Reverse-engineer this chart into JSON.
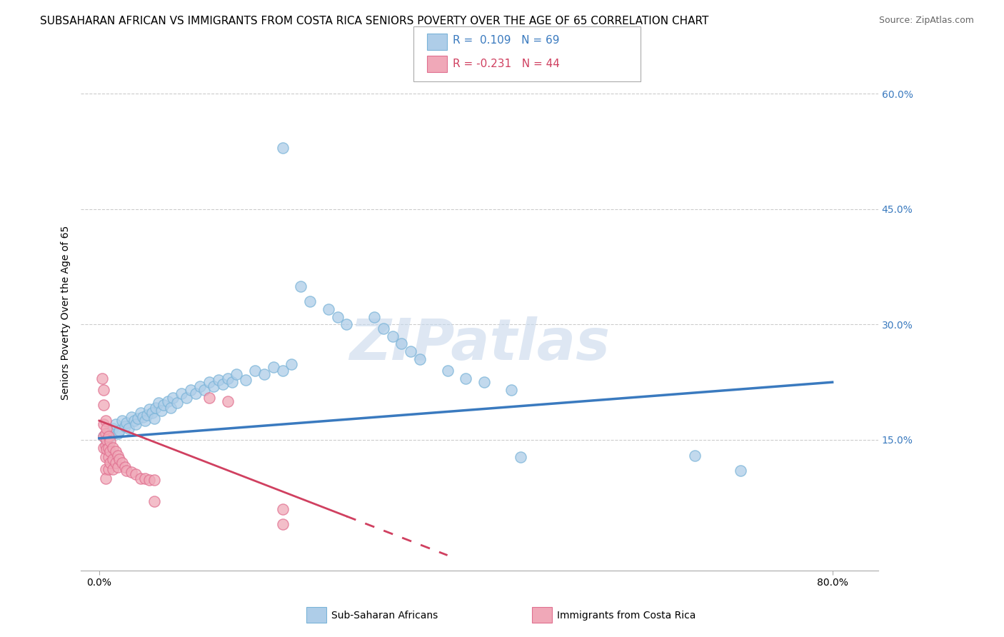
{
  "title": "SUBSAHARAN AFRICAN VS IMMIGRANTS FROM COSTA RICA SENIORS POVERTY OVER THE AGE OF 65 CORRELATION CHART",
  "source": "Source: ZipAtlas.com",
  "ylabel": "Seniors Poverty Over the Age of 65",
  "legend1_label": "Sub-Saharan Africans",
  "legend2_label": "Immigrants from Costa Rica",
  "r1": 0.109,
  "n1": 69,
  "r2": -0.231,
  "n2": 44,
  "blue_color": "#7ab4d8",
  "blue_fill": "#aecde8",
  "pink_color": "#e07090",
  "pink_fill": "#f0a8b8",
  "trend_blue": "#3a7abf",
  "trend_pink": "#d04060",
  "watermark_color": "#c8d8ec",
  "blue_dots": [
    [
      0.005,
      0.155
    ],
    [
      0.008,
      0.148
    ],
    [
      0.01,
      0.16
    ],
    [
      0.012,
      0.155
    ],
    [
      0.015,
      0.165
    ],
    [
      0.018,
      0.17
    ],
    [
      0.02,
      0.158
    ],
    [
      0.022,
      0.162
    ],
    [
      0.025,
      0.175
    ],
    [
      0.028,
      0.168
    ],
    [
      0.03,
      0.172
    ],
    [
      0.032,
      0.165
    ],
    [
      0.035,
      0.18
    ],
    [
      0.038,
      0.175
    ],
    [
      0.04,
      0.17
    ],
    [
      0.042,
      0.178
    ],
    [
      0.045,
      0.185
    ],
    [
      0.048,
      0.18
    ],
    [
      0.05,
      0.175
    ],
    [
      0.052,
      0.182
    ],
    [
      0.055,
      0.19
    ],
    [
      0.058,
      0.185
    ],
    [
      0.06,
      0.178
    ],
    [
      0.062,
      0.192
    ],
    [
      0.065,
      0.198
    ],
    [
      0.068,
      0.188
    ],
    [
      0.07,
      0.195
    ],
    [
      0.075,
      0.2
    ],
    [
      0.078,
      0.192
    ],
    [
      0.08,
      0.205
    ],
    [
      0.085,
      0.198
    ],
    [
      0.09,
      0.21
    ],
    [
      0.095,
      0.205
    ],
    [
      0.1,
      0.215
    ],
    [
      0.105,
      0.21
    ],
    [
      0.11,
      0.22
    ],
    [
      0.115,
      0.215
    ],
    [
      0.12,
      0.225
    ],
    [
      0.125,
      0.22
    ],
    [
      0.13,
      0.228
    ],
    [
      0.135,
      0.222
    ],
    [
      0.14,
      0.23
    ],
    [
      0.145,
      0.225
    ],
    [
      0.15,
      0.235
    ],
    [
      0.16,
      0.228
    ],
    [
      0.17,
      0.24
    ],
    [
      0.18,
      0.235
    ],
    [
      0.19,
      0.245
    ],
    [
      0.2,
      0.24
    ],
    [
      0.21,
      0.248
    ],
    [
      0.22,
      0.35
    ],
    [
      0.23,
      0.33
    ],
    [
      0.25,
      0.32
    ],
    [
      0.26,
      0.31
    ],
    [
      0.27,
      0.3
    ],
    [
      0.3,
      0.31
    ],
    [
      0.31,
      0.295
    ],
    [
      0.32,
      0.285
    ],
    [
      0.33,
      0.275
    ],
    [
      0.34,
      0.265
    ],
    [
      0.35,
      0.255
    ],
    [
      0.38,
      0.24
    ],
    [
      0.4,
      0.23
    ],
    [
      0.42,
      0.225
    ],
    [
      0.45,
      0.215
    ],
    [
      0.46,
      0.128
    ],
    [
      0.2,
      0.53
    ],
    [
      0.65,
      0.13
    ],
    [
      0.7,
      0.11
    ]
  ],
  "pink_dots": [
    [
      0.003,
      0.23
    ],
    [
      0.005,
      0.215
    ],
    [
      0.005,
      0.195
    ],
    [
      0.005,
      0.17
    ],
    [
      0.005,
      0.155
    ],
    [
      0.005,
      0.14
    ],
    [
      0.007,
      0.175
    ],
    [
      0.007,
      0.158
    ],
    [
      0.007,
      0.143
    ],
    [
      0.007,
      0.128
    ],
    [
      0.007,
      0.112
    ],
    [
      0.007,
      0.1
    ],
    [
      0.008,
      0.165
    ],
    [
      0.008,
      0.15
    ],
    [
      0.008,
      0.138
    ],
    [
      0.01,
      0.155
    ],
    [
      0.01,
      0.14
    ],
    [
      0.01,
      0.128
    ],
    [
      0.01,
      0.112
    ],
    [
      0.012,
      0.148
    ],
    [
      0.012,
      0.135
    ],
    [
      0.012,
      0.12
    ],
    [
      0.015,
      0.14
    ],
    [
      0.015,
      0.125
    ],
    [
      0.015,
      0.112
    ],
    [
      0.018,
      0.135
    ],
    [
      0.018,
      0.12
    ],
    [
      0.02,
      0.13
    ],
    [
      0.02,
      0.115
    ],
    [
      0.022,
      0.125
    ],
    [
      0.025,
      0.12
    ],
    [
      0.028,
      0.115
    ],
    [
      0.03,
      0.11
    ],
    [
      0.035,
      0.108
    ],
    [
      0.04,
      0.105
    ],
    [
      0.045,
      0.1
    ],
    [
      0.05,
      0.1
    ],
    [
      0.055,
      0.098
    ],
    [
      0.06,
      0.098
    ],
    [
      0.06,
      0.07
    ],
    [
      0.12,
      0.205
    ],
    [
      0.14,
      0.2
    ],
    [
      0.2,
      0.04
    ],
    [
      0.2,
      0.06
    ]
  ],
  "xlim": [
    -0.02,
    0.85
  ],
  "ylim": [
    -0.02,
    0.65
  ],
  "xtick_positions": [
    0.0,
    0.8
  ],
  "ytick_positions": [
    0.15,
    0.3,
    0.45,
    0.6
  ],
  "grid_color": "#cccccc",
  "background_color": "#ffffff",
  "title_fontsize": 11,
  "axis_fontsize": 10,
  "tick_fontsize": 10,
  "dot_size": 120,
  "trend_blue_start_y": 0.152,
  "trend_blue_end_y": 0.225,
  "trend_pink_start_x": 0.0,
  "trend_pink_start_y": 0.175,
  "trend_pink_end_x": 0.38,
  "trend_pink_end_y": 0.0
}
